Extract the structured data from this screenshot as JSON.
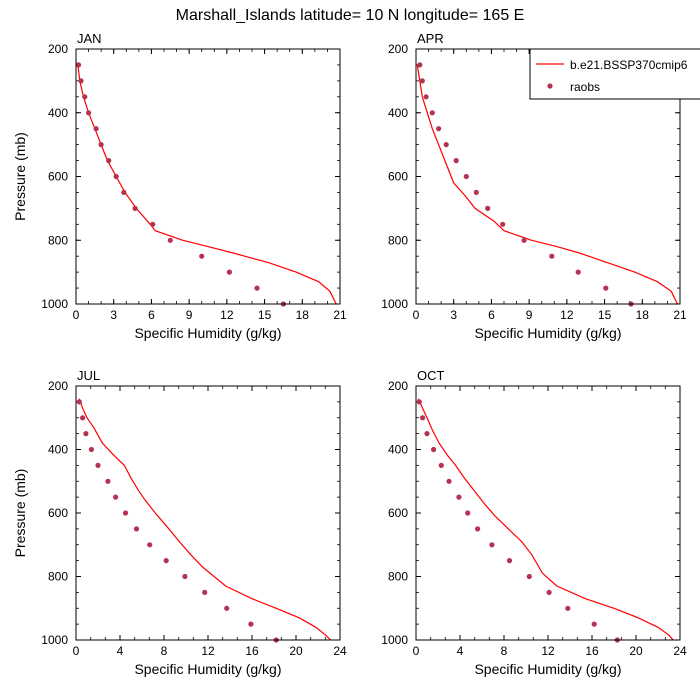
{
  "figure": {
    "title": "Marshall_Islands  latitude= 10 N longitude= 165 E"
  },
  "colors": {
    "model_line": "#ff0000",
    "obs_marker": "#b5334f",
    "axis": "#000000"
  },
  "chart_data": [
    {
      "type": "line",
      "panel_label": "JAN",
      "xlabel": "Specific Humidity (g/kg)",
      "ylabel": "Pressure (mb)",
      "xlim": [
        0,
        21
      ],
      "xticks": [
        0,
        3,
        6,
        9,
        12,
        15,
        18,
        21
      ],
      "ylim": [
        1000,
        200
      ],
      "yticks": [
        200,
        400,
        600,
        800,
        1000
      ],
      "y_inverted": true,
      "series": [
        {
          "name": "b.e21.BSSP370cmip6",
          "style": "line",
          "x": [
            0.15,
            0.3,
            0.6,
            1.0,
            1.5,
            2.0,
            2.5,
            3.2,
            3.9,
            4.8,
            5.9,
            6.3,
            8.5,
            10.5,
            12.5,
            15.3,
            17.5,
            19.3,
            20.2,
            20.7
          ],
          "y": [
            250,
            300,
            350,
            400,
            450,
            500,
            550,
            600,
            650,
            700,
            750,
            770,
            800,
            820,
            840,
            870,
            900,
            930,
            960,
            1000
          ]
        },
        {
          "name": "raobs",
          "style": "markers",
          "x": [
            0.2,
            0.4,
            0.7,
            1.0,
            1.6,
            2.0,
            2.6,
            3.2,
            3.8,
            4.7,
            6.1,
            7.5,
            10.0,
            12.2,
            14.4,
            16.5
          ],
          "y": [
            250,
            300,
            350,
            400,
            450,
            500,
            550,
            600,
            650,
            700,
            750,
            800,
            850,
            900,
            950,
            1000
          ]
        }
      ]
    },
    {
      "type": "line",
      "panel_label": "APR",
      "xlabel": "Specific Humidity (g/kg)",
      "ylabel": "",
      "xlim": [
        0,
        21
      ],
      "xticks": [
        0,
        3,
        6,
        9,
        12,
        15,
        18,
        21
      ],
      "ylim": [
        1000,
        200
      ],
      "yticks": [
        200,
        400,
        600,
        800,
        1000
      ],
      "y_inverted": true,
      "legend": {
        "placement": "top-right",
        "entries": [
          "b.e21.BSSP370cmip6",
          "raobs"
        ]
      },
      "series": [
        {
          "name": "b.e21.BSSP370cmip6",
          "style": "line",
          "x": [
            0.1,
            0.3,
            0.5,
            0.9,
            1.3,
            1.8,
            2.3,
            3.0,
            3.9,
            4.7,
            6.2,
            7.0,
            9.2,
            11.2,
            13.0,
            15.2,
            17.4,
            19.2,
            20.3,
            20.8
          ],
          "y": [
            250,
            300,
            350,
            400,
            450,
            500,
            550,
            620,
            660,
            700,
            740,
            770,
            800,
            820,
            840,
            870,
            900,
            930,
            960,
            1000
          ]
        },
        {
          "name": "raobs",
          "style": "markers",
          "x": [
            0.3,
            0.5,
            0.8,
            1.3,
            1.8,
            2.4,
            3.2,
            4.0,
            4.8,
            5.7,
            6.9,
            8.6,
            10.8,
            12.9,
            15.1,
            17.1
          ],
          "y": [
            250,
            300,
            350,
            400,
            450,
            500,
            550,
            600,
            650,
            700,
            750,
            800,
            850,
            900,
            950,
            1000
          ]
        }
      ]
    },
    {
      "type": "line",
      "panel_label": "JUL",
      "xlabel": "Specific Humidity (g/kg)",
      "ylabel": "Pressure (mb)",
      "xlim": [
        0,
        24
      ],
      "xticks": [
        0,
        4,
        8,
        12,
        16,
        20,
        24
      ],
      "ylim": [
        1000,
        200
      ],
      "yticks": [
        200,
        400,
        600,
        800,
        1000
      ],
      "y_inverted": true,
      "series": [
        {
          "name": "b.e21.BSSP370cmip6",
          "style": "line",
          "x": [
            0.3,
            0.6,
            1.0,
            1.6,
            2.4,
            3.5,
            4.4,
            5.0,
            5.7,
            6.3,
            7.2,
            8.2,
            9.4,
            10.4,
            11.5,
            13.6,
            16.0,
            18.2,
            20.3,
            21.8,
            22.7,
            23.3
          ],
          "y": [
            240,
            270,
            300,
            330,
            380,
            420,
            450,
            490,
            530,
            560,
            600,
            640,
            690,
            730,
            770,
            830,
            870,
            900,
            930,
            960,
            985,
            1005
          ]
        },
        {
          "name": "raobs",
          "style": "markers",
          "x": [
            0.3,
            0.6,
            0.9,
            1.4,
            2.0,
            2.9,
            3.6,
            4.5,
            5.5,
            6.7,
            8.2,
            9.9,
            11.7,
            13.7,
            15.9,
            18.2
          ],
          "y": [
            250,
            300,
            350,
            400,
            450,
            500,
            550,
            600,
            650,
            700,
            750,
            800,
            850,
            900,
            950,
            1000
          ]
        }
      ]
    },
    {
      "type": "line",
      "panel_label": "OCT",
      "xlabel": "Specific Humidity (g/kg)",
      "ylabel": "",
      "xlim": [
        0,
        24
      ],
      "xticks": [
        0,
        4,
        8,
        12,
        16,
        20,
        24
      ],
      "ylim": [
        1000,
        200
      ],
      "yticks": [
        200,
        400,
        600,
        800,
        1000
      ],
      "y_inverted": true,
      "series": [
        {
          "name": "b.e21.BSSP370cmip6",
          "style": "line",
          "x": [
            0.2,
            0.6,
            1.0,
            1.5,
            2.1,
            2.9,
            3.6,
            4.4,
            5.3,
            6.2,
            7.2,
            8.4,
            9.6,
            10.5,
            11.5,
            12.8,
            15.4,
            18.0,
            20.2,
            22.0,
            23.0,
            23.5
          ],
          "y": [
            240,
            270,
            300,
            340,
            380,
            420,
            450,
            490,
            530,
            570,
            610,
            650,
            690,
            730,
            790,
            830,
            870,
            900,
            930,
            960,
            985,
            1005
          ]
        },
        {
          "name": "raobs",
          "style": "markers",
          "x": [
            0.3,
            0.6,
            1.0,
            1.6,
            2.3,
            3.0,
            3.9,
            4.7,
            5.6,
            6.9,
            8.5,
            10.3,
            12.1,
            13.8,
            16.2,
            18.3
          ],
          "y": [
            250,
            300,
            350,
            400,
            450,
            500,
            550,
            600,
            650,
            700,
            750,
            800,
            850,
            900,
            950,
            1000
          ]
        }
      ]
    }
  ]
}
